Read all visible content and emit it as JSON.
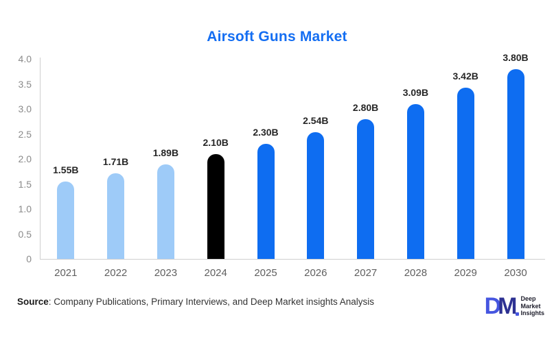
{
  "title": "Airsoft Guns Market",
  "chart_data": {
    "type": "bar",
    "title": "Airsoft Guns Market",
    "categories": [
      "2021",
      "2022",
      "2023",
      "2024",
      "2025",
      "2026",
      "2027",
      "2028",
      "2029",
      "2030"
    ],
    "values": [
      1.55,
      1.71,
      1.89,
      2.1,
      2.3,
      2.54,
      2.8,
      3.09,
      3.42,
      3.8
    ],
    "value_labels": [
      "1.55B",
      "1.71B",
      "1.89B",
      "2.10B",
      "2.30B",
      "2.54B",
      "2.80B",
      "3.09B",
      "3.42B",
      "3.80B"
    ],
    "bar_colors": [
      "#9ECBF8",
      "#9ECBF8",
      "#9ECBF8",
      "#000000",
      "#0E6DF1",
      "#0E6DF1",
      "#0E6DF1",
      "#0E6DF1",
      "#0E6DF1",
      "#0E6DF1"
    ],
    "xlabel": "",
    "ylabel": "",
    "ylim": [
      0,
      4.0
    ],
    "yticks": [
      "4.0",
      "3.5",
      "3.0",
      "2.5",
      "2.0",
      "1.5",
      "1.0",
      "0.5",
      "0"
    ],
    "grid": false,
    "legend": false
  },
  "colors": {
    "title": "#146EF2",
    "bar_blue": "#0E6DF1",
    "bar_light_blue": "#9ECBF8",
    "bar_black": "#000000",
    "axis_line": "#CFCFCF",
    "y_tick_label": "#8A8A8A",
    "x_tick_label": "#5F5F5F",
    "value_label": "#262626"
  },
  "footer": {
    "source_label": "Source",
    "source_rest": ": Company Publications, Primary Interviews, and Deep Market insights Analysis"
  },
  "logo": {
    "monogram_d": "D",
    "monogram_m": "M",
    "lines": [
      "Deep",
      "Market",
      "Insights"
    ]
  }
}
